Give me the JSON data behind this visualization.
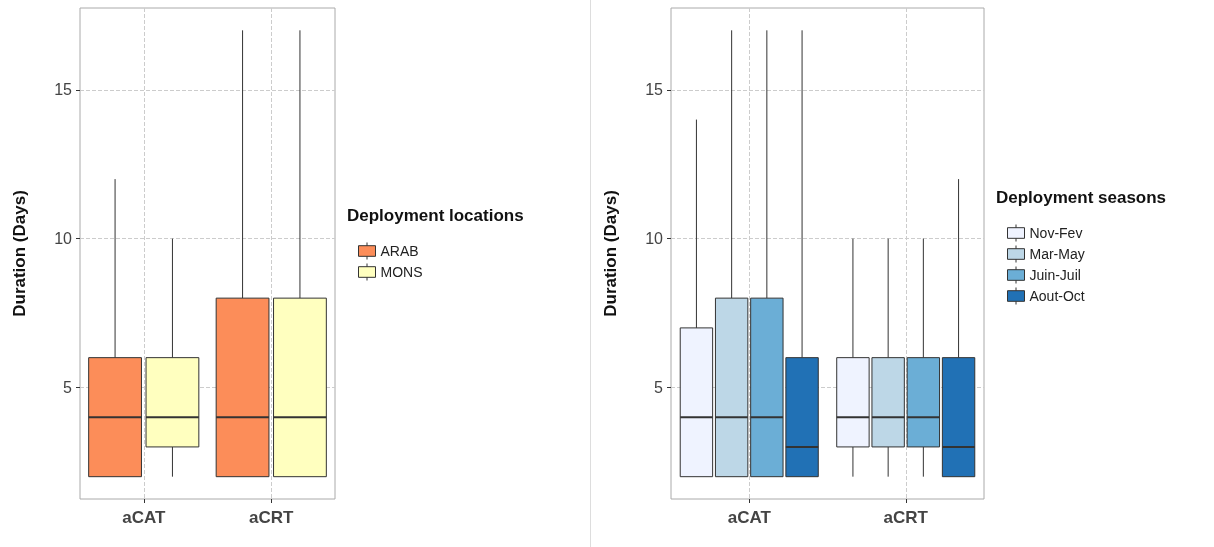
{
  "chart_data": [
    {
      "type": "box",
      "ylabel": "Duration (Days)",
      "legend_title": "Deployment locations",
      "categories": [
        "aCAT",
        "aCRT"
      ],
      "ylim": [
        1.25,
        17.75
      ],
      "yticks": [
        5,
        10,
        15
      ],
      "grid": true,
      "legend": "right",
      "series": [
        {
          "name": "ARAB",
          "color": "#fc8d59",
          "boxes": [
            {
              "low": 2,
              "q1": 2,
              "median": 4,
              "q3": 6,
              "high": 12
            },
            {
              "low": 2,
              "q1": 2,
              "median": 4,
              "q3": 8,
              "high": 17
            }
          ]
        },
        {
          "name": "MONS",
          "color": "#ffffbf",
          "boxes": [
            {
              "low": 2,
              "q1": 3,
              "median": 4,
              "q3": 6,
              "high": 10
            },
            {
              "low": 2,
              "q1": 2,
              "median": 4,
              "q3": 8,
              "high": 17
            }
          ]
        }
      ]
    },
    {
      "type": "box",
      "ylabel": "Duration (Days)",
      "legend_title": "Deployment seasons",
      "categories": [
        "aCAT",
        "aCRT"
      ],
      "ylim": [
        1.25,
        17.75
      ],
      "yticks": [
        5,
        10,
        15
      ],
      "grid": true,
      "legend": "right",
      "series": [
        {
          "name": "Nov-Fev",
          "color": "#eff3ff",
          "boxes": [
            {
              "low": 2,
              "q1": 2,
              "median": 4,
              "q3": 7,
              "high": 14
            },
            {
              "low": 2,
              "q1": 3,
              "median": 4,
              "q3": 6,
              "high": 10
            }
          ]
        },
        {
          "name": "Mar-May",
          "color": "#bdd7e7",
          "boxes": [
            {
              "low": 2,
              "q1": 2,
              "median": 4,
              "q3": 8,
              "high": 17
            },
            {
              "low": 2,
              "q1": 3,
              "median": 4,
              "q3": 6,
              "high": 10
            }
          ]
        },
        {
          "name": "Juin-Juil",
          "color": "#6baed6",
          "boxes": [
            {
              "low": 2,
              "q1": 2,
              "median": 4,
              "q3": 8,
              "high": 17
            },
            {
              "low": 2,
              "q1": 3,
              "median": 4,
              "q3": 6,
              "high": 10
            }
          ]
        },
        {
          "name": "Aout-Oct",
          "color": "#2171b5",
          "boxes": [
            {
              "low": 2,
              "q1": 2,
              "median": 3,
              "q3": 6,
              "high": 17
            },
            {
              "low": 2,
              "q1": 2,
              "median": 3,
              "q3": 6,
              "high": 12
            }
          ]
        }
      ]
    }
  ]
}
